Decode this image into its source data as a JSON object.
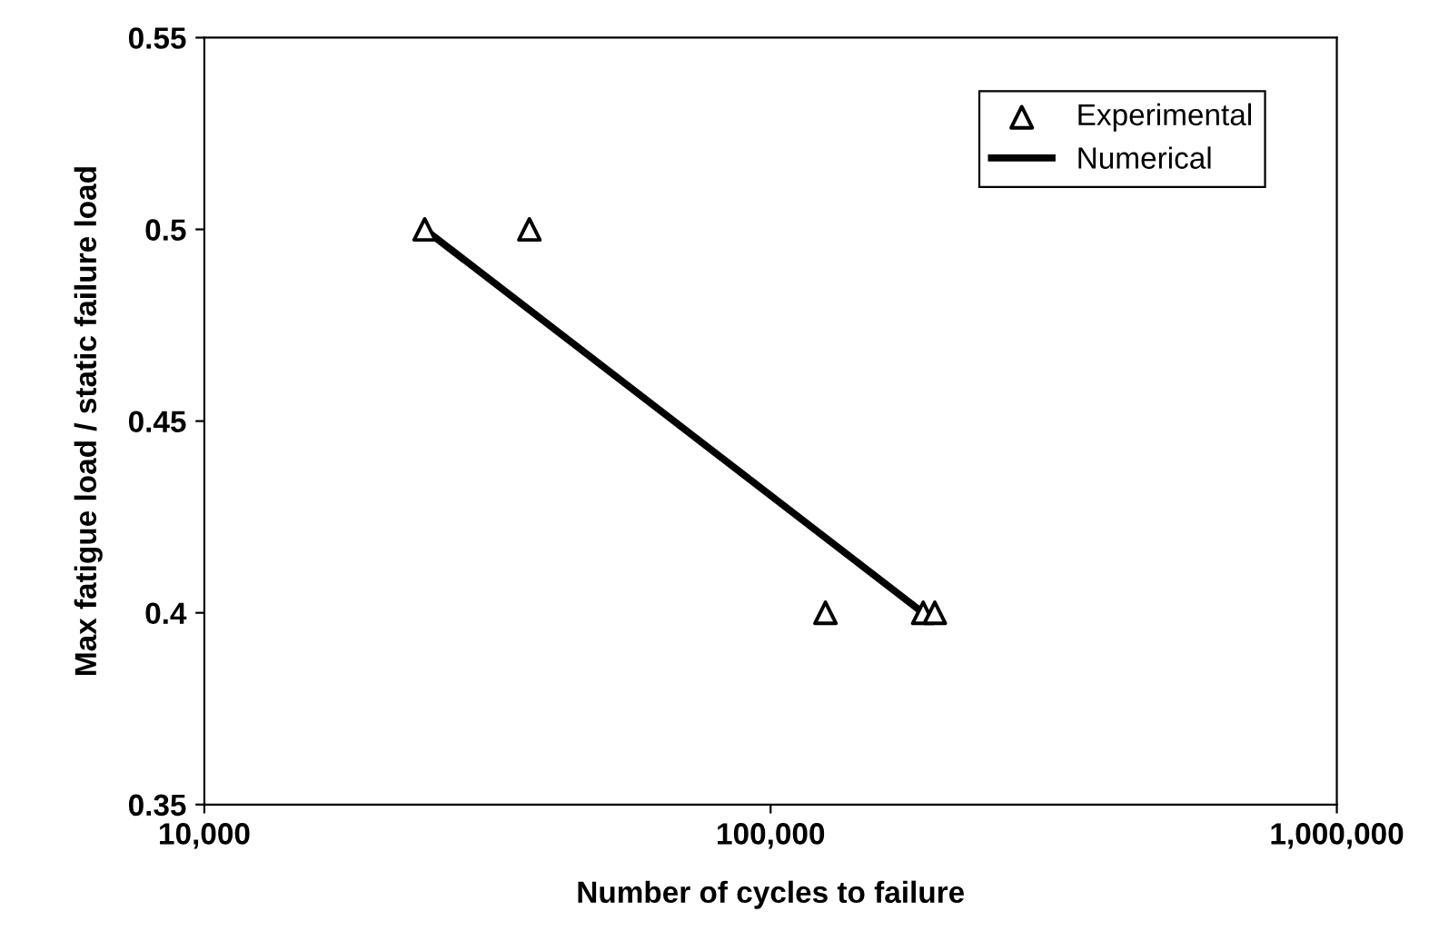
{
  "chart_data": {
    "type": "scatter",
    "xlabel": "Number of cycles to failure",
    "ylabel": "Max fatigue load / static failure load",
    "log": "x",
    "xlim": [
      10000,
      1000000
    ],
    "xticks": [
      {
        "value": 10000,
        "label": "10,000"
      },
      {
        "value": 100000,
        "label": "100,000"
      },
      {
        "value": 1000000,
        "label": "1,000,000"
      }
    ],
    "ylim": [
      0.35,
      0.55
    ],
    "yticks": [
      0.35,
      0.4,
      0.45,
      0.5,
      0.55
    ],
    "grid": false,
    "legend": "top right",
    "series": [
      {
        "name": "Experimental",
        "marker": "triangle",
        "color": "#000000",
        "x": [
          24500,
          37500,
          125000,
          186000,
          195000
        ],
        "values": [
          0.5,
          0.5,
          0.4,
          0.4,
          0.4
        ]
      },
      {
        "name": "Numerical",
        "type": "line",
        "marker": "none",
        "line_style": "solid",
        "color": "#000000",
        "x": [
          24500,
          186000
        ],
        "values": [
          0.5,
          0.4
        ]
      }
    ]
  }
}
